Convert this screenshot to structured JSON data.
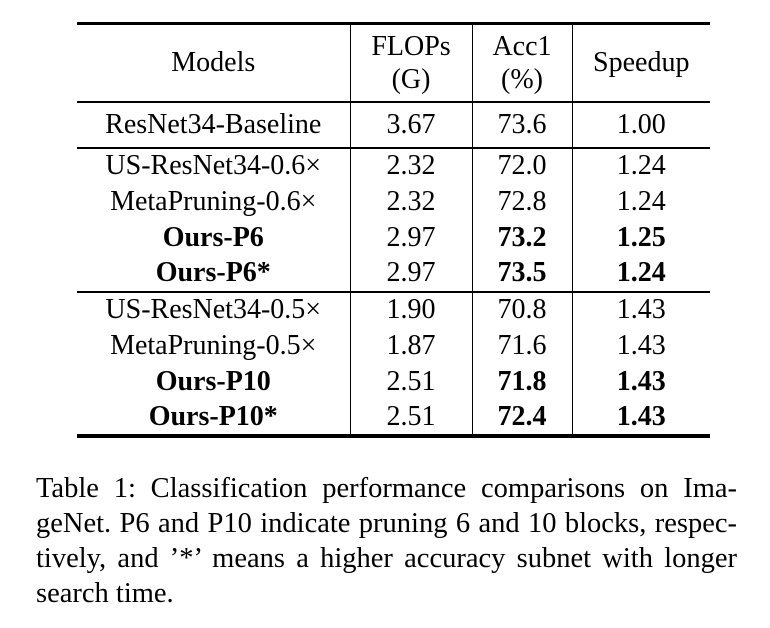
{
  "table": {
    "headers": [
      {
        "line1": "Models",
        "line2": ""
      },
      {
        "line1": "FLOPs",
        "line2": "(G)"
      },
      {
        "line1": "Acc1",
        "line2": "(%)"
      },
      {
        "line1": "Speedup",
        "line2": ""
      }
    ],
    "rows": [
      {
        "model": "ResNet34-Baseline",
        "flops": "3.67",
        "acc1": "73.6",
        "speedup": "1.00"
      },
      {
        "model": "US-ResNet34-0.6×",
        "flops": "2.32",
        "acc1": "72.0",
        "speedup": "1.24"
      },
      {
        "model": "MetaPruning-0.6×",
        "flops": "2.32",
        "acc1": "72.8",
        "speedup": "1.24"
      },
      {
        "model": "Ours-P6",
        "flops": "2.97",
        "acc1": "73.2",
        "speedup": "1.25"
      },
      {
        "model": "Ours-P6*",
        "flops": "2.97",
        "acc1": "73.5",
        "speedup": "1.24"
      },
      {
        "model": "US-ResNet34-0.5×",
        "flops": "1.90",
        "acc1": "70.8",
        "speedup": "1.43"
      },
      {
        "model": "MetaPruning-0.5×",
        "flops": "1.87",
        "acc1": "71.6",
        "speedup": "1.43"
      },
      {
        "model": "Ours-P10",
        "flops": "2.51",
        "acc1": "71.8",
        "speedup": "1.43"
      },
      {
        "model": "Ours-P10*",
        "flops": "2.51",
        "acc1": "72.4",
        "speedup": "1.43"
      }
    ]
  },
  "caption": {
    "lines": [
      "Table 1: Classification performance comparisons on Ima-",
      "geNet. P6 and P10 indicate pruning 6 and 10 blocks, respec-",
      "tively, and ’*’ means a higher accuracy subnet with longer",
      "search time."
    ]
  },
  "colors": {
    "text": "#000000",
    "background": "#ffffff",
    "rule": "#000000"
  }
}
